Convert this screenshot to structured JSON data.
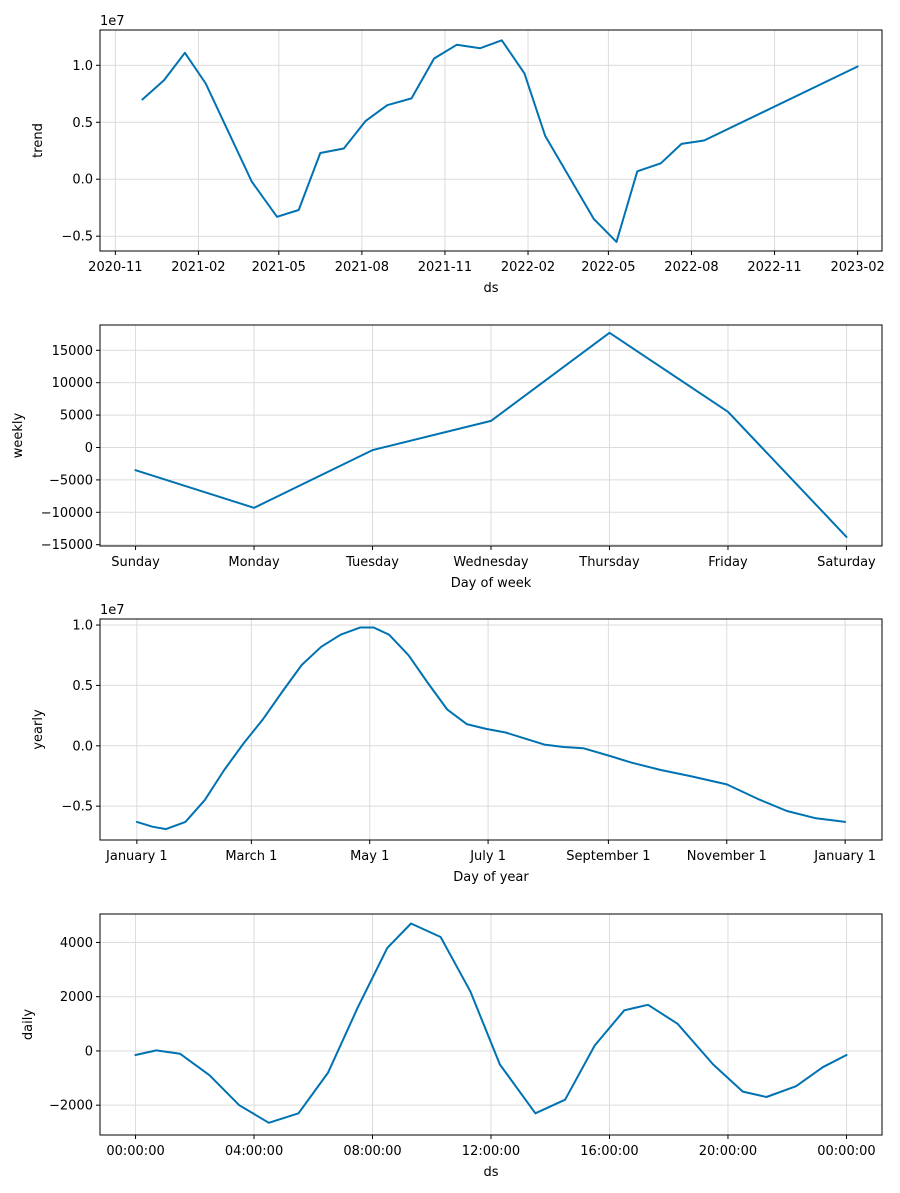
{
  "colors": {
    "line": "#0072B2",
    "grid": "#dcdcdc",
    "frame": "#000000"
  },
  "chart_data": [
    {
      "type": "line",
      "name": "trend",
      "xlabel": "ds",
      "ylabel": "trend",
      "offset_label": "1e7",
      "x_scale": "date",
      "xlim": [
        "2020-10-15",
        "2023-02-28"
      ],
      "ylim": [
        -0.63,
        1.31
      ],
      "grid": true,
      "xticks": [
        {
          "value": "2020-11-01",
          "label": "2020-11"
        },
        {
          "value": "2021-02-01",
          "label": "2021-02"
        },
        {
          "value": "2021-05-01",
          "label": "2021-05"
        },
        {
          "value": "2021-08-01",
          "label": "2021-08"
        },
        {
          "value": "2021-11-01",
          "label": "2021-11"
        },
        {
          "value": "2022-02-01",
          "label": "2022-02"
        },
        {
          "value": "2022-05-01",
          "label": "2022-05"
        },
        {
          "value": "2022-08-01",
          "label": "2022-08"
        },
        {
          "value": "2022-11-01",
          "label": "2022-11"
        },
        {
          "value": "2023-02-01",
          "label": "2023-02"
        }
      ],
      "yticks": [
        {
          "value": 1.0,
          "label": "1.0"
        },
        {
          "value": 0.5,
          "label": "0.5"
        },
        {
          "value": 0.0,
          "label": "0.0"
        },
        {
          "value": -0.5,
          "label": "−0.5"
        }
      ],
      "points": [
        {
          "x": "2020-12-01",
          "y": 0.7
        },
        {
          "x": "2020-12-25",
          "y": 0.87
        },
        {
          "x": "2021-01-17",
          "y": 1.11
        },
        {
          "x": "2021-02-09",
          "y": 0.84
        },
        {
          "x": "2021-04-01",
          "y": -0.02
        },
        {
          "x": "2021-04-29",
          "y": -0.33
        },
        {
          "x": "2021-05-23",
          "y": -0.27
        },
        {
          "x": "2021-06-16",
          "y": 0.23
        },
        {
          "x": "2021-07-12",
          "y": 0.27
        },
        {
          "x": "2021-08-05",
          "y": 0.51
        },
        {
          "x": "2021-08-29",
          "y": 0.65
        },
        {
          "x": "2021-09-25",
          "y": 0.71
        },
        {
          "x": "2021-10-20",
          "y": 1.06
        },
        {
          "x": "2021-11-14",
          "y": 1.18
        },
        {
          "x": "2021-12-10",
          "y": 1.15
        },
        {
          "x": "2022-01-03",
          "y": 1.22
        },
        {
          "x": "2022-01-28",
          "y": 0.93
        },
        {
          "x": "2022-02-20",
          "y": 0.38
        },
        {
          "x": "2022-04-15",
          "y": -0.35
        },
        {
          "x": "2022-05-10",
          "y": -0.55
        },
        {
          "x": "2022-06-02",
          "y": 0.07
        },
        {
          "x": "2022-06-28",
          "y": 0.14
        },
        {
          "x": "2022-07-21",
          "y": 0.31
        },
        {
          "x": "2022-08-15",
          "y": 0.34
        },
        {
          "x": "2023-02-01",
          "y": 0.99
        }
      ]
    },
    {
      "type": "line",
      "name": "weekly",
      "xlabel": "Day of week",
      "ylabel": "weekly",
      "offset_label": "",
      "x_scale": "linear",
      "xlim": [
        -0.3,
        6.3
      ],
      "ylim": [
        -15200,
        18900
      ],
      "grid": true,
      "xticks": [
        {
          "value": 0,
          "label": "Sunday"
        },
        {
          "value": 1,
          "label": "Monday"
        },
        {
          "value": 2,
          "label": "Tuesday"
        },
        {
          "value": 3,
          "label": "Wednesday"
        },
        {
          "value": 4,
          "label": "Thursday"
        },
        {
          "value": 5,
          "label": "Friday"
        },
        {
          "value": 6,
          "label": "Saturday"
        }
      ],
      "yticks": [
        {
          "value": 15000,
          "label": "15000"
        },
        {
          "value": 10000,
          "label": "10000"
        },
        {
          "value": 5000,
          "label": "5000"
        },
        {
          "value": 0,
          "label": "0"
        },
        {
          "value": -5000,
          "label": "−5000"
        },
        {
          "value": -10000,
          "label": "−10000"
        },
        {
          "value": -15000,
          "label": "−15000"
        }
      ],
      "points": [
        {
          "x": 0,
          "y": -3500
        },
        {
          "x": 1,
          "y": -9300
        },
        {
          "x": 2,
          "y": -400
        },
        {
          "x": 3,
          "y": 4100
        },
        {
          "x": 4,
          "y": 17700
        },
        {
          "x": 5,
          "y": 5500
        },
        {
          "x": 6,
          "y": -13800
        }
      ]
    },
    {
      "type": "line",
      "name": "yearly",
      "xlabel": "Day of year",
      "ylabel": "yearly",
      "offset_label": "1e7",
      "x_scale": "linear",
      "xlim": [
        -19,
        384
      ],
      "ylim": [
        -0.78,
        1.05
      ],
      "grid": true,
      "xticks": [
        {
          "value": 0,
          "label": "January 1"
        },
        {
          "value": 59,
          "label": "March 1"
        },
        {
          "value": 120,
          "label": "May 1"
        },
        {
          "value": 181,
          "label": "July 1"
        },
        {
          "value": 243,
          "label": "September 1"
        },
        {
          "value": 304,
          "label": "November 1"
        },
        {
          "value": 365,
          "label": "January 1"
        }
      ],
      "yticks": [
        {
          "value": 1.0,
          "label": "1.0"
        },
        {
          "value": 0.5,
          "label": "0.5"
        },
        {
          "value": 0.0,
          "label": "0.0"
        },
        {
          "value": -0.5,
          "label": "−0.5"
        }
      ],
      "points": [
        {
          "x": 0,
          "y": -0.63
        },
        {
          "x": 8,
          "y": -0.67
        },
        {
          "x": 15,
          "y": -0.69
        },
        {
          "x": 25,
          "y": -0.63
        },
        {
          "x": 35,
          "y": -0.45
        },
        {
          "x": 45,
          "y": -0.2
        },
        {
          "x": 55,
          "y": 0.02
        },
        {
          "x": 65,
          "y": 0.22
        },
        {
          "x": 75,
          "y": 0.45
        },
        {
          "x": 85,
          "y": 0.67
        },
        {
          "x": 95,
          "y": 0.82
        },
        {
          "x": 105,
          "y": 0.92
        },
        {
          "x": 115,
          "y": 0.98
        },
        {
          "x": 122,
          "y": 0.98
        },
        {
          "x": 130,
          "y": 0.92
        },
        {
          "x": 140,
          "y": 0.75
        },
        {
          "x": 150,
          "y": 0.52
        },
        {
          "x": 160,
          "y": 0.3
        },
        {
          "x": 170,
          "y": 0.18
        },
        {
          "x": 180,
          "y": 0.14
        },
        {
          "x": 190,
          "y": 0.11
        },
        {
          "x": 200,
          "y": 0.06
        },
        {
          "x": 210,
          "y": 0.01
        },
        {
          "x": 220,
          "y": -0.01
        },
        {
          "x": 230,
          "y": -0.02
        },
        {
          "x": 243,
          "y": -0.08
        },
        {
          "x": 255,
          "y": -0.14
        },
        {
          "x": 270,
          "y": -0.2
        },
        {
          "x": 285,
          "y": -0.25
        },
        {
          "x": 304,
          "y": -0.32
        },
        {
          "x": 320,
          "y": -0.44
        },
        {
          "x": 335,
          "y": -0.54
        },
        {
          "x": 350,
          "y": -0.6
        },
        {
          "x": 365,
          "y": -0.63
        }
      ]
    },
    {
      "type": "line",
      "name": "daily",
      "xlabel": "ds",
      "ylabel": "daily",
      "offset_label": "",
      "x_scale": "linear",
      "xlim": [
        -1.2,
        25.2
      ],
      "ylim": [
        -3100,
        5050
      ],
      "grid": true,
      "xticks": [
        {
          "value": 0,
          "label": "00:00:00"
        },
        {
          "value": 4,
          "label": "04:00:00"
        },
        {
          "value": 8,
          "label": "08:00:00"
        },
        {
          "value": 12,
          "label": "12:00:00"
        },
        {
          "value": 16,
          "label": "16:00:00"
        },
        {
          "value": 20,
          "label": "20:00:00"
        },
        {
          "value": 24,
          "label": "00:00:00"
        }
      ],
      "yticks": [
        {
          "value": 4000,
          "label": "4000"
        },
        {
          "value": 2000,
          "label": "2000"
        },
        {
          "value": 0,
          "label": "0"
        },
        {
          "value": -2000,
          "label": "−2000"
        }
      ],
      "points": [
        {
          "x": 0,
          "y": -150
        },
        {
          "x": 0.7,
          "y": 20
        },
        {
          "x": 1.5,
          "y": -100
        },
        {
          "x": 2.5,
          "y": -900
        },
        {
          "x": 3.5,
          "y": -2000
        },
        {
          "x": 4.5,
          "y": -2650
        },
        {
          "x": 5.5,
          "y": -2300
        },
        {
          "x": 6.5,
          "y": -800
        },
        {
          "x": 7.5,
          "y": 1600
        },
        {
          "x": 8.5,
          "y": 3800
        },
        {
          "x": 9.3,
          "y": 4700
        },
        {
          "x": 10.3,
          "y": 4200
        },
        {
          "x": 11.3,
          "y": 2200
        },
        {
          "x": 12.3,
          "y": -500
        },
        {
          "x": 13.5,
          "y": -2300
        },
        {
          "x": 14.5,
          "y": -1800
        },
        {
          "x": 15.5,
          "y": 200
        },
        {
          "x": 16.5,
          "y": 1500
        },
        {
          "x": 17.3,
          "y": 1700
        },
        {
          "x": 18.3,
          "y": 1000
        },
        {
          "x": 19.5,
          "y": -500
        },
        {
          "x": 20.5,
          "y": -1500
        },
        {
          "x": 21.3,
          "y": -1700
        },
        {
          "x": 22.3,
          "y": -1300
        },
        {
          "x": 23.2,
          "y": -600
        },
        {
          "x": 24,
          "y": -150
        }
      ]
    }
  ]
}
